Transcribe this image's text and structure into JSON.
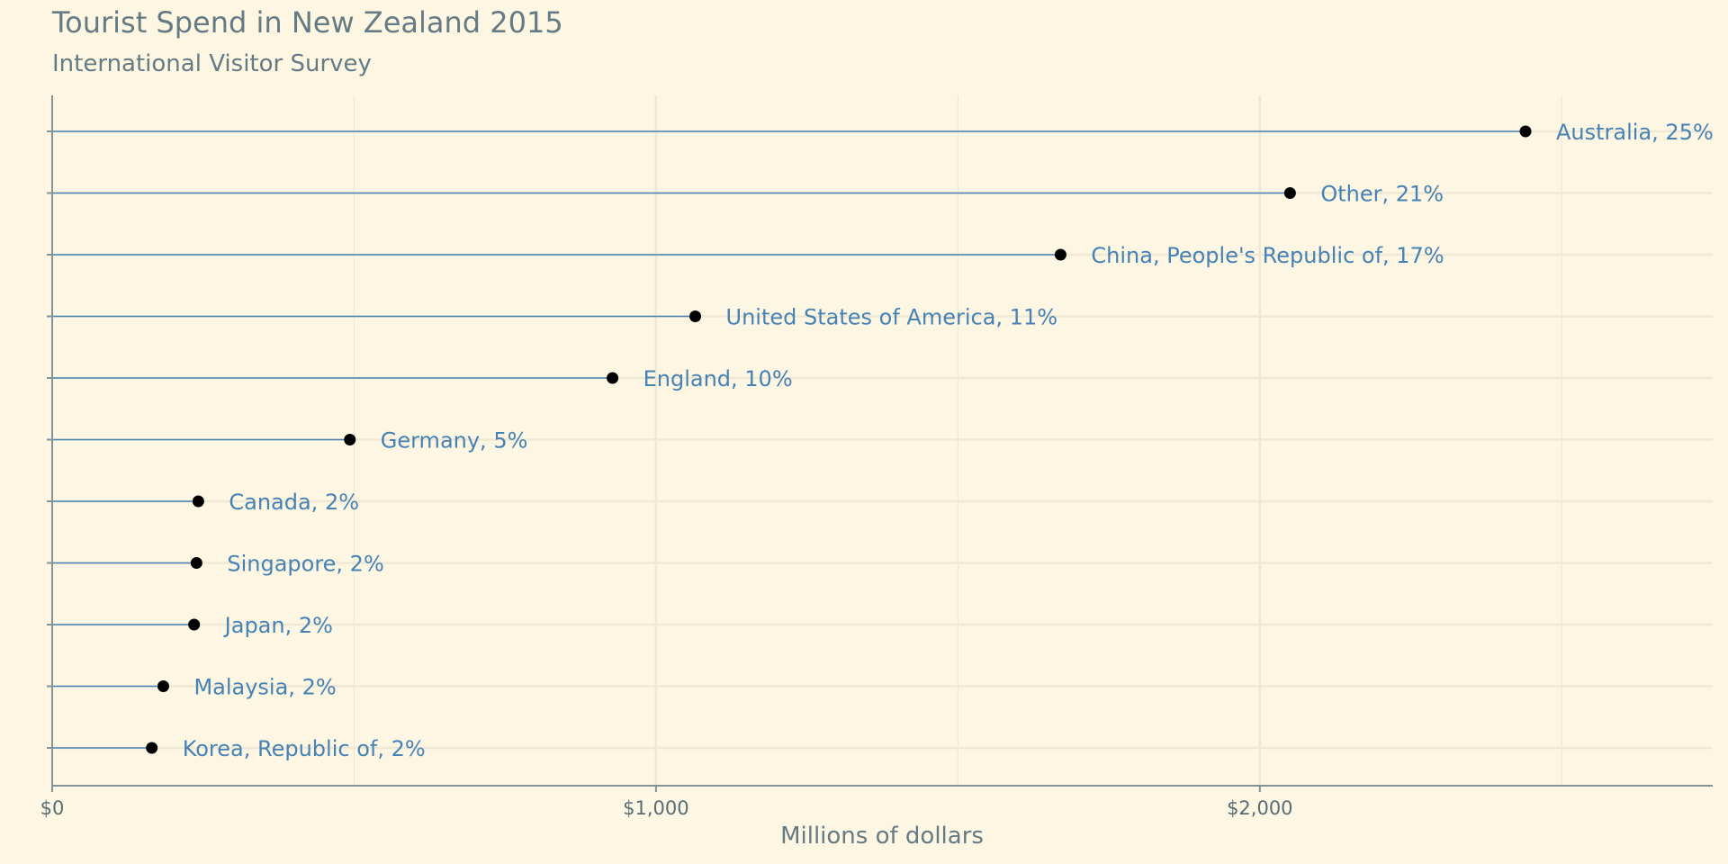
{
  "chart_data": {
    "type": "scatter",
    "style": "lollipop",
    "title": "Tourist Spend in New Zealand 2015",
    "subtitle": "International Visitor Survey",
    "xlabel": "Millions of dollars",
    "ylabel": "",
    "xlim": [
      0,
      2750
    ],
    "x_ticks": [
      0,
      1000,
      2000
    ],
    "x_tick_labels": [
      "$0",
      "$1,000",
      "$2,000"
    ],
    "grid": true,
    "legend": "none",
    "points": [
      {
        "label": "Australia, 25%",
        "value": 2440
      },
      {
        "label": "Other, 21%",
        "value": 2050
      },
      {
        "label": "China, People's Republic of, 17%",
        "value": 1670
      },
      {
        "label": "United States of America, 11%",
        "value": 1065
      },
      {
        "label": "England, 10%",
        "value": 928
      },
      {
        "label": "Germany, 5%",
        "value": 493
      },
      {
        "label": "Canada, 2%",
        "value": 242
      },
      {
        "label": "Singapore, 2%",
        "value": 239
      },
      {
        "label": "Japan, 2%",
        "value": 235
      },
      {
        "label": "Malaysia, 2%",
        "value": 184
      },
      {
        "label": "Korea, Republic of, 2%",
        "value": 165
      }
    ]
  },
  "colors": {
    "background": "#fdf6e3",
    "stem": "#4682b4",
    "point": "#000000",
    "label": "#4682b4",
    "text": "#657b83",
    "axis": "#839496",
    "grid": "#eee8d5"
  }
}
